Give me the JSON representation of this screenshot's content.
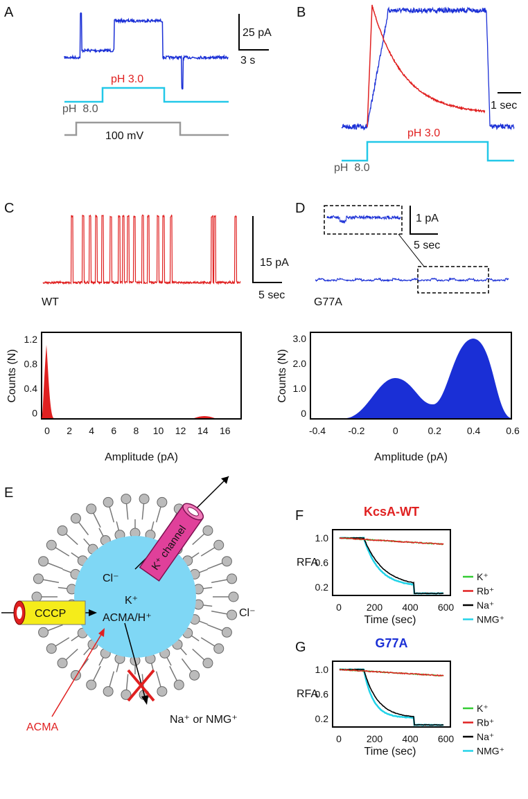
{
  "panels": {
    "A": {
      "label": "A",
      "scale_current": "25 pA",
      "scale_time": "3 s",
      "ph_high": "pH 3.0",
      "ph_low": "pH  8.0",
      "voltage": "100 mV"
    },
    "B": {
      "label": "B",
      "scale_time": "1 sec",
      "ph_high": "pH 3.0",
      "ph_low": "pH  8.0"
    },
    "C": {
      "label": "C",
      "scale_current": "15 pA",
      "scale_time": "5 sec",
      "trace_label": "WT",
      "y_label": "Counts (N)",
      "x_label": "Amplitude (pA)",
      "yticks": [
        "1.2",
        "0.8",
        "0.4",
        "0"
      ],
      "xticks": [
        "0",
        "2",
        "4",
        "6",
        "8",
        "10",
        "12",
        "14",
        "16"
      ]
    },
    "D": {
      "label": "D",
      "scale_current": "1 pA",
      "scale_time": "5 sec",
      "trace_label": "G77A",
      "y_label": "Counts (N)",
      "x_label": "Amplitude (pA)",
      "yticks": [
        "3.0",
        "2.0",
        "1.0",
        "0"
      ],
      "xticks": [
        "-0.4",
        "-0.2",
        "0",
        "0.2",
        "0.4",
        "0.6"
      ]
    },
    "E": {
      "label": "E",
      "cl_inside": "Cl⁻",
      "k_inside": "K⁺",
      "acma_h": "ACMA/H⁺",
      "cl_outside": "Cl⁻",
      "channel": "K⁺ channel",
      "cccp": "CCCP",
      "acma": "ACMA",
      "cations": "Na⁺ or NMG⁺"
    },
    "F": {
      "label": "F",
      "title": "KcsA-WT",
      "y_label": "RFA",
      "x_label": "Time (sec)",
      "yticks": [
        "1.0",
        "0.6",
        "0.2"
      ],
      "xticks": [
        "0",
        "200",
        "400",
        "600"
      ],
      "legend": [
        {
          "name": "K⁺",
          "color": "#33cc33"
        },
        {
          "name": "Rb⁺",
          "color": "#e02020"
        },
        {
          "name": "Na⁺",
          "color": "#000000"
        },
        {
          "name": "NMG⁺",
          "color": "#22d3e8"
        }
      ]
    },
    "G": {
      "label": "G",
      "title": "G77A",
      "y_label": "RFA",
      "x_label": "Time (sec)",
      "yticks": [
        "1.0",
        "0.6",
        "0.2"
      ],
      "xticks": [
        "0",
        "200",
        "400",
        "600"
      ],
      "legend": [
        {
          "name": "K⁺",
          "color": "#33cc33"
        },
        {
          "name": "Rb⁺",
          "color": "#e02020"
        },
        {
          "name": "Na⁺",
          "color": "#000000"
        },
        {
          "name": "NMG⁺",
          "color": "#22d3e8"
        }
      ]
    }
  }
}
